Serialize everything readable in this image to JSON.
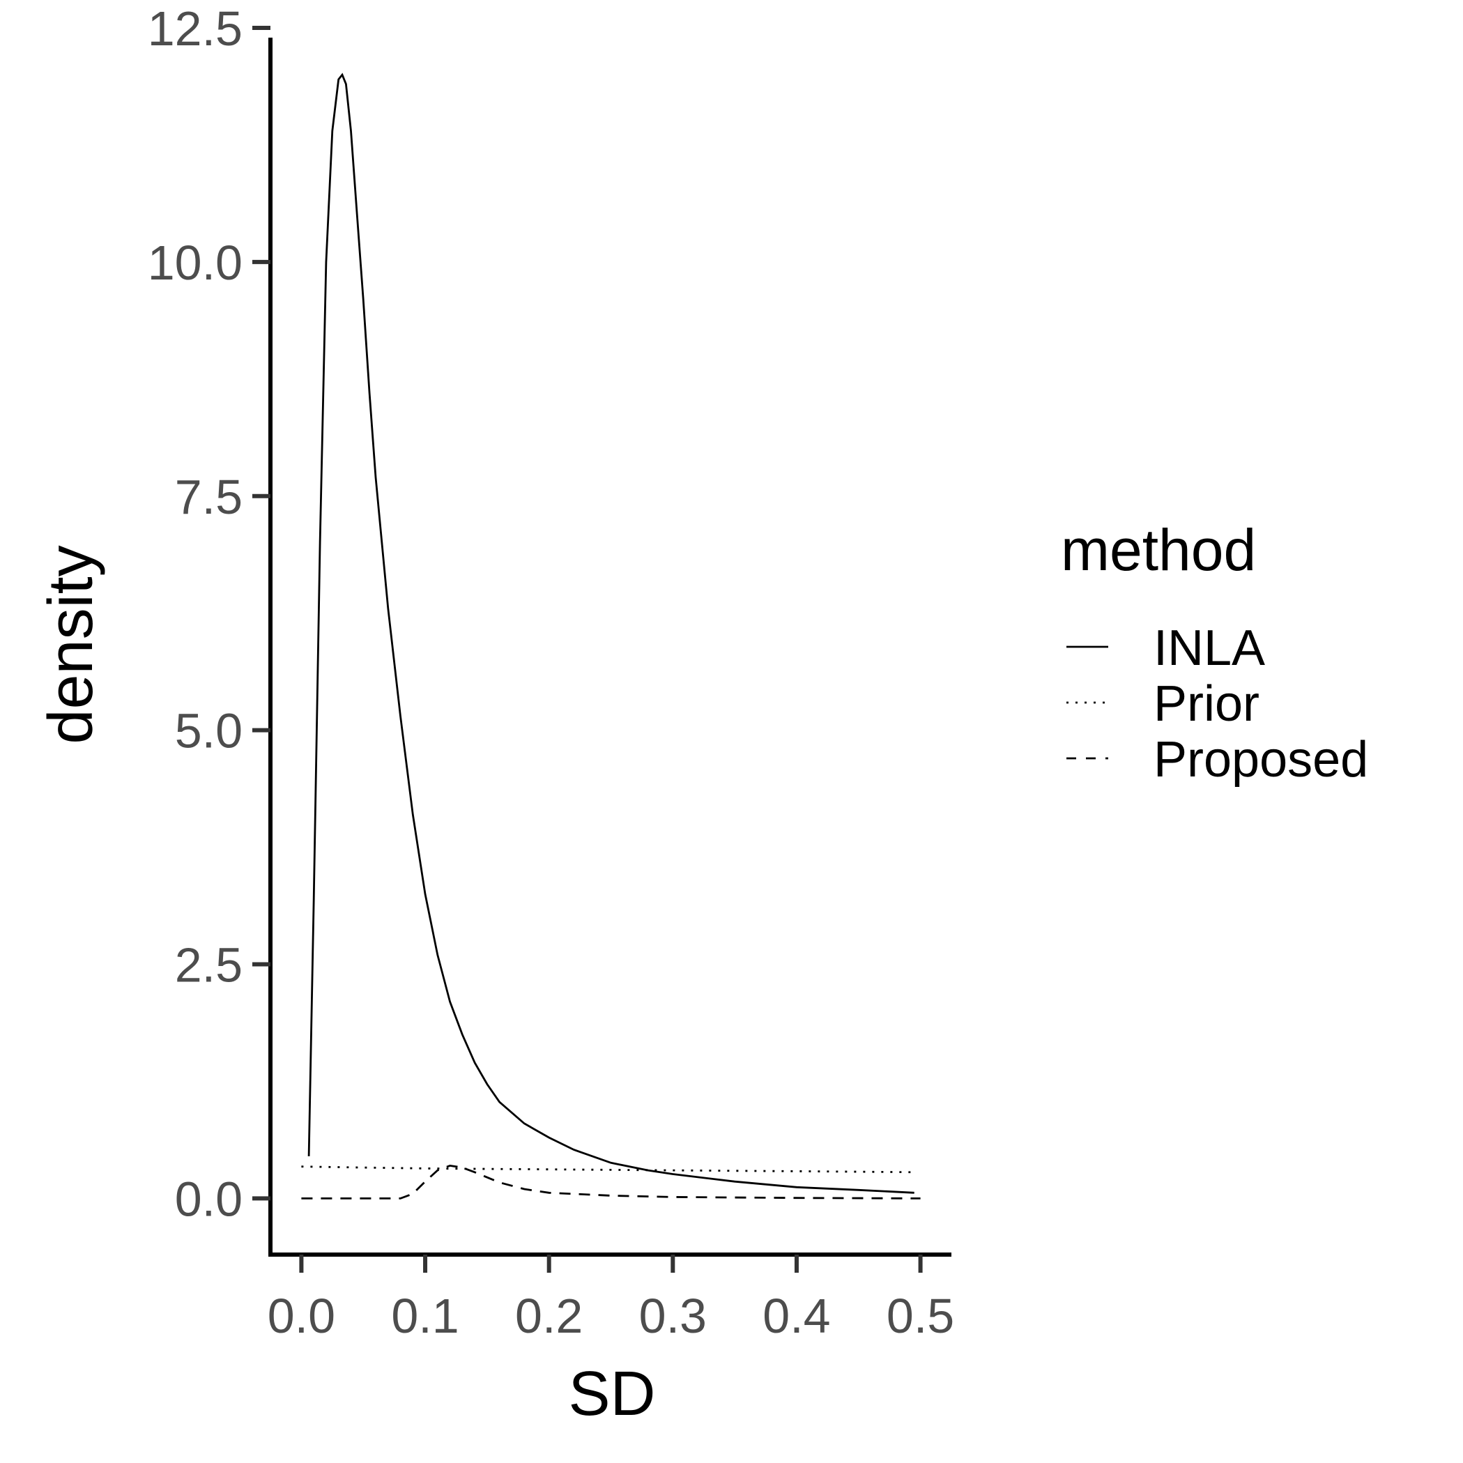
{
  "chart_data": {
    "type": "line",
    "xlabel": "SD",
    "ylabel": "density",
    "xlim": [
      -0.025,
      0.525
    ],
    "ylim": [
      -0.6,
      12.5
    ],
    "x_ticks": [
      "0.0",
      "0.1",
      "0.2",
      "0.3",
      "0.4",
      "0.5"
    ],
    "y_ticks": [
      "0.0",
      "2.5",
      "5.0",
      "7.5",
      "10.0",
      "12.5"
    ],
    "grid": false,
    "legend": {
      "title": "method",
      "position": "right"
    },
    "series": [
      {
        "name": "INLA",
        "linetype": "solid",
        "x": [
          0.006,
          0.01,
          0.015,
          0.02,
          0.025,
          0.03,
          0.033,
          0.036,
          0.04,
          0.045,
          0.05,
          0.055,
          0.06,
          0.07,
          0.08,
          0.09,
          0.1,
          0.11,
          0.12,
          0.13,
          0.14,
          0.15,
          0.16,
          0.18,
          0.2,
          0.22,
          0.25,
          0.28,
          0.3,
          0.35,
          0.4,
          0.45,
          0.495
        ],
        "y": [
          0.45,
          3.2,
          7.0,
          10.0,
          11.4,
          11.95,
          12.0,
          11.9,
          11.4,
          10.5,
          9.6,
          8.6,
          7.7,
          6.3,
          5.15,
          4.1,
          3.25,
          2.6,
          2.1,
          1.75,
          1.45,
          1.22,
          1.03,
          0.8,
          0.65,
          0.52,
          0.38,
          0.3,
          0.26,
          0.18,
          0.12,
          0.09,
          0.06
        ]
      },
      {
        "name": "Prior",
        "linetype": "dotted",
        "x": [
          0.0,
          0.05,
          0.1,
          0.15,
          0.2,
          0.25,
          0.3,
          0.35,
          0.4,
          0.45,
          0.495
        ],
        "y": [
          0.34,
          0.33,
          0.32,
          0.315,
          0.31,
          0.305,
          0.3,
          0.295,
          0.29,
          0.285,
          0.28
        ]
      },
      {
        "name": "Proposed",
        "linetype": "dashed",
        "x": [
          0.0,
          0.05,
          0.08,
          0.09,
          0.1,
          0.11,
          0.12,
          0.13,
          0.14,
          0.16,
          0.18,
          0.2,
          0.25,
          0.3,
          0.4,
          0.5
        ],
        "y": [
          0.0,
          0.0,
          0.0,
          0.05,
          0.18,
          0.3,
          0.35,
          0.33,
          0.28,
          0.17,
          0.1,
          0.06,
          0.03,
          0.015,
          0.005,
          0.0
        ]
      }
    ]
  }
}
